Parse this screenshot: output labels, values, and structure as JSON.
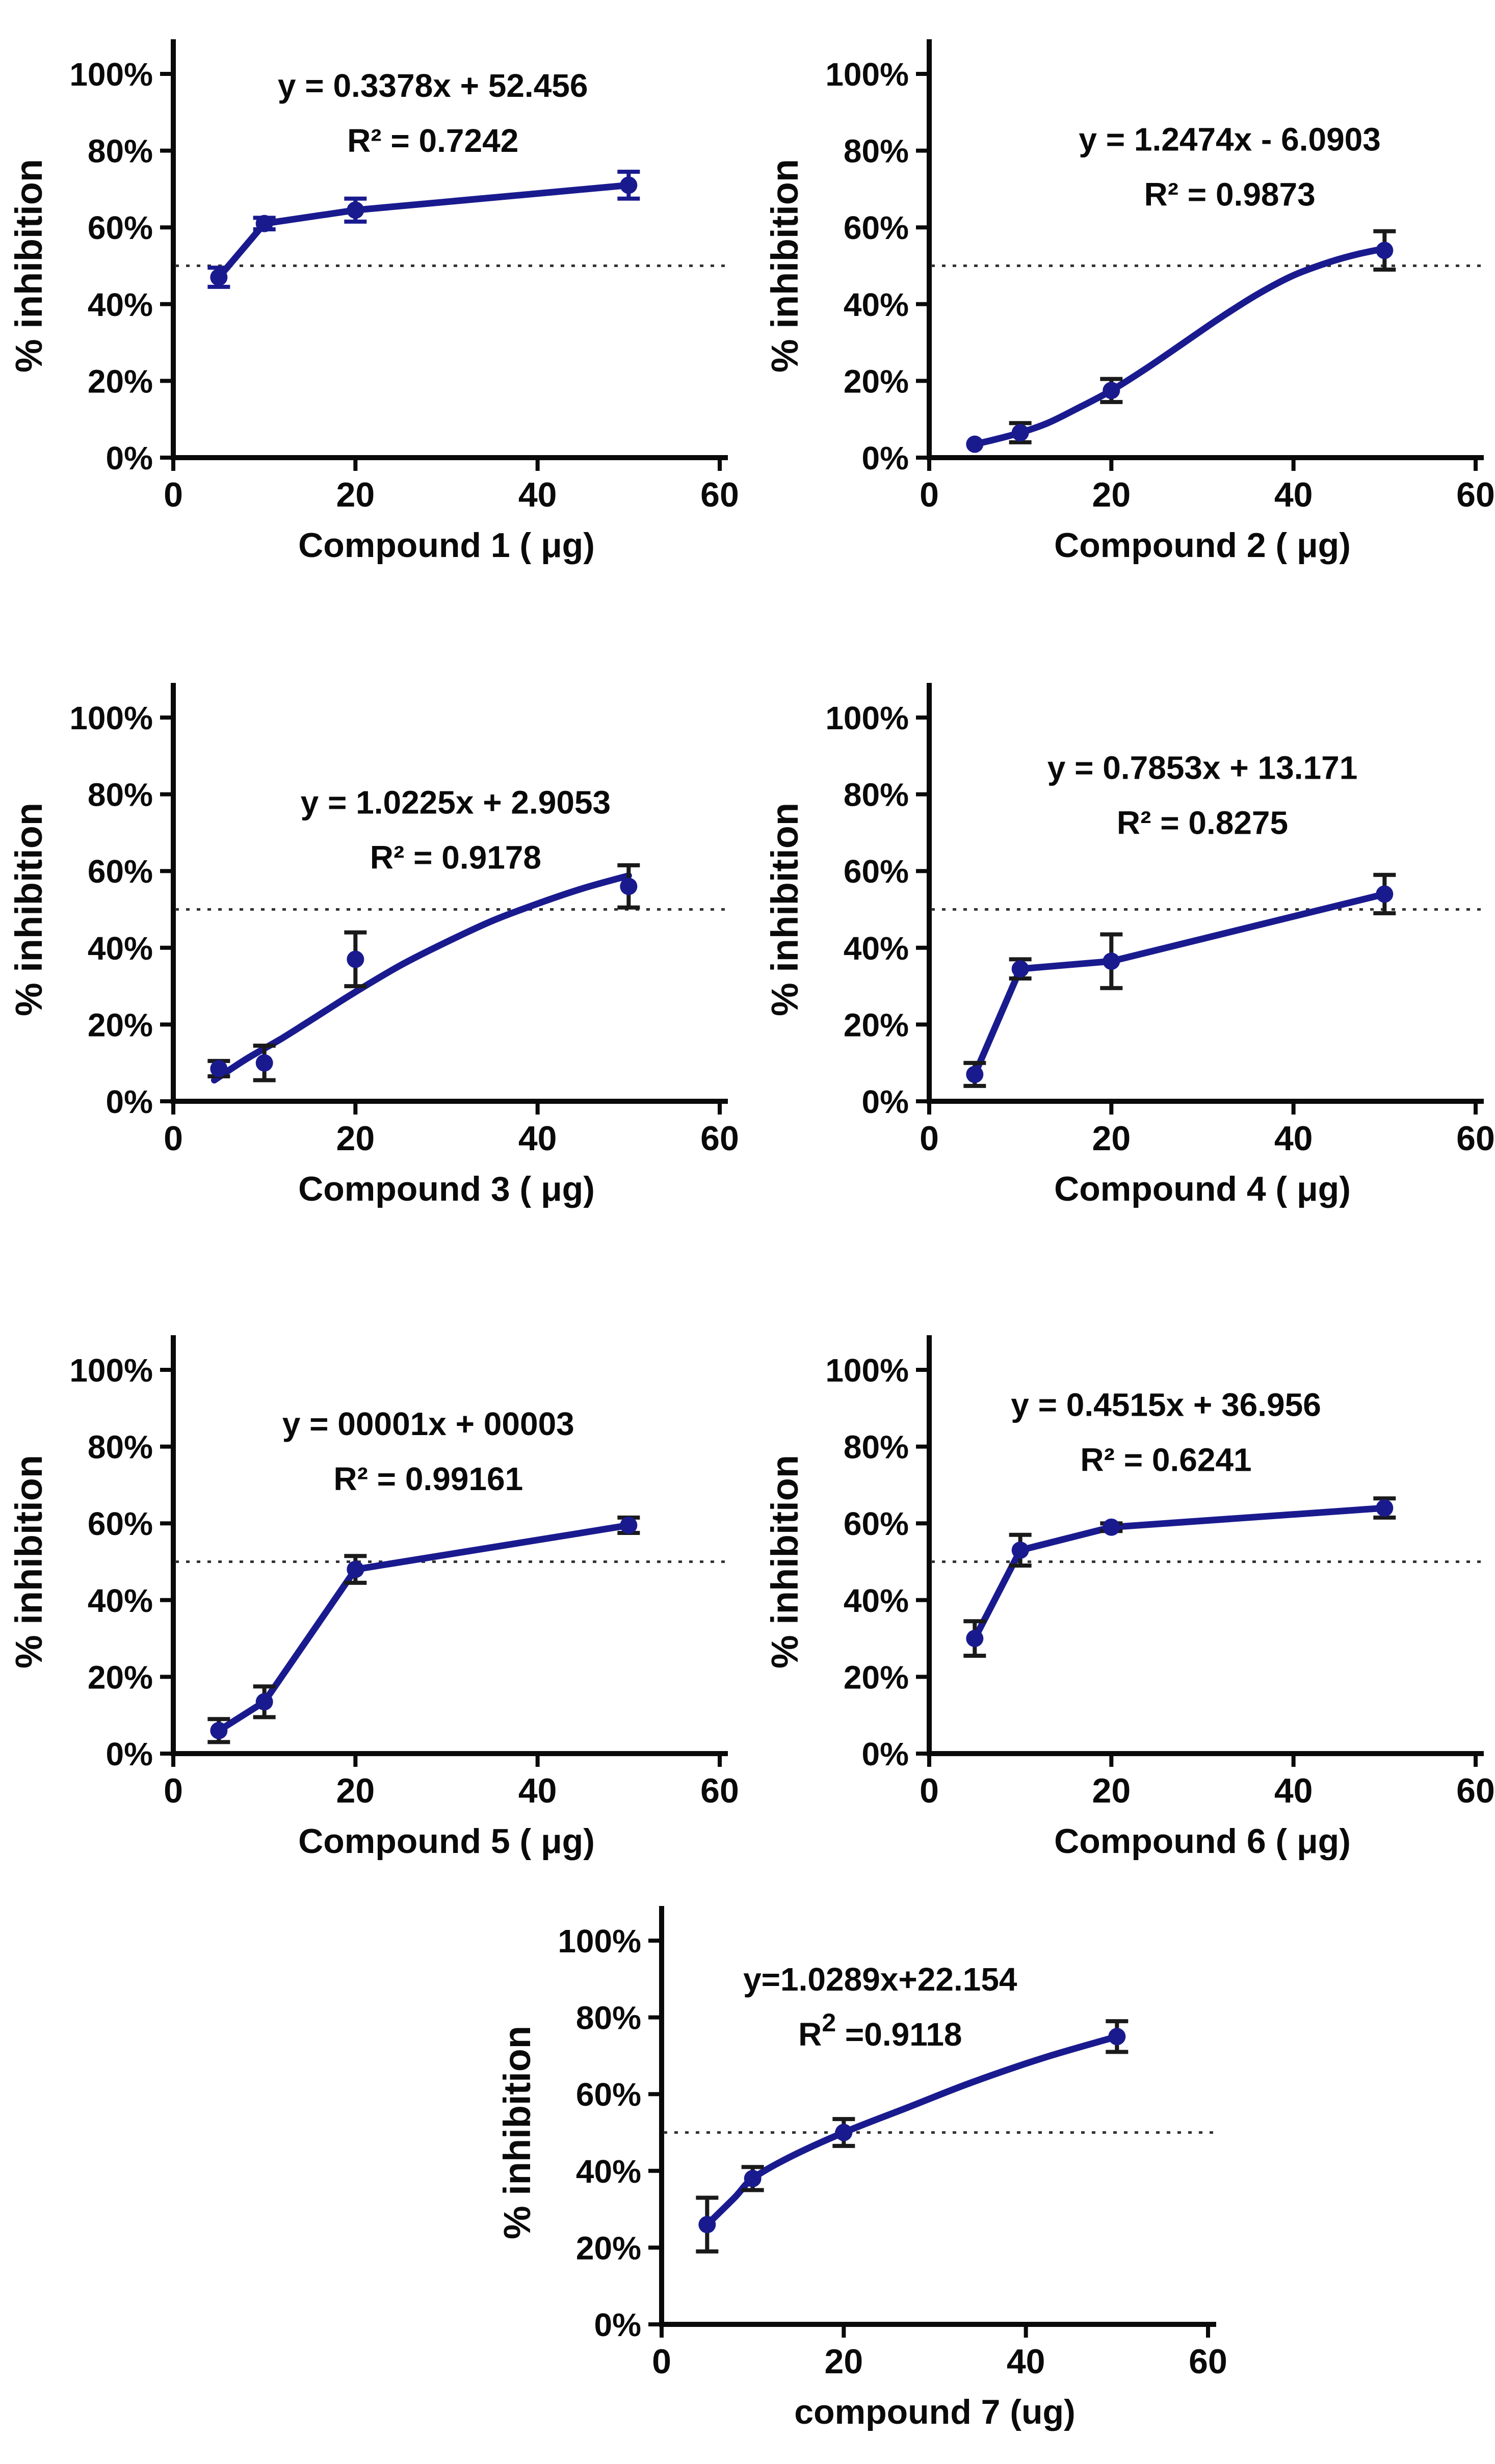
{
  "figure": {
    "background": "#ffffff",
    "line_color": "#1a1a8f",
    "marker_color": "#1a1a8f",
    "text_color": "#0a0a0a",
    "reference_line": {
      "value": 50,
      "style": "dotted",
      "color": "#333333"
    }
  },
  "chart_data": [
    {
      "name": "compound-1",
      "type": "line",
      "equation": "y = 0.3378x + 52.456",
      "r_squared": "R² = 0.7242",
      "big_superscript": false,
      "xlabel": "Compound 1 ( μg)",
      "ylabel": "% inhibition",
      "x": [
        5,
        10,
        20,
        50
      ],
      "y": [
        47,
        61,
        64.5,
        71
      ],
      "yerr": [
        2.5,
        1.5,
        3,
        3.5
      ],
      "xlim": [
        0,
        60
      ],
      "ylim": [
        0,
        100
      ],
      "xticks": [
        0,
        20,
        40,
        60
      ],
      "yticks": [
        0,
        20,
        40,
        60,
        80,
        100
      ],
      "ytick_labels": [
        "0%",
        "20%",
        "40%",
        "60%",
        "80%",
        "100%"
      ],
      "grid": false,
      "legend": "none",
      "reference_line_y": 50,
      "connect": "segments",
      "curve": null,
      "error_color": "#1a1a8f",
      "annotation_anchor": {
        "x": 28.5,
        "y": 94
      }
    },
    {
      "name": "compound-2",
      "type": "line",
      "equation": "y = 1.2474x - 6.0903",
      "r_squared": "R² = 0.9873",
      "big_superscript": false,
      "xlabel": "Compound 2 ( μg)",
      "ylabel": "% inhibition",
      "x": [
        5,
        10,
        20,
        50
      ],
      "y": [
        3.5,
        6.5,
        17.5,
        54
      ],
      "yerr": [
        0,
        2.5,
        3,
        5
      ],
      "xlim": [
        0,
        60
      ],
      "ylim": [
        0,
        100
      ],
      "xticks": [
        0,
        20,
        40,
        60
      ],
      "yticks": [
        0,
        20,
        40,
        60,
        80,
        100
      ],
      "ytick_labels": [
        "0%",
        "20%",
        "40%",
        "60%",
        "80%",
        "100%"
      ],
      "grid": false,
      "legend": "none",
      "reference_line_y": 50,
      "connect": "curve",
      "curve": [
        [
          5,
          3.5
        ],
        [
          7,
          4.6
        ],
        [
          10,
          6.5
        ],
        [
          13,
          9
        ],
        [
          16,
          12.5
        ],
        [
          20,
          17.5
        ],
        [
          24,
          23.5
        ],
        [
          28,
          30
        ],
        [
          32,
          36.5
        ],
        [
          36,
          42.5
        ],
        [
          40,
          47.5
        ],
        [
          44,
          51
        ],
        [
          47,
          53
        ],
        [
          50,
          54.5
        ]
      ],
      "error_color": "#1a1a1a",
      "annotation_anchor": {
        "x": 33,
        "y": 80
      }
    },
    {
      "name": "compound-3",
      "type": "line",
      "equation": "y = 1.0225x + 2.9053",
      "r_squared": "R² = 0.9178",
      "big_superscript": false,
      "xlabel": "Compound 3 ( μg)",
      "ylabel": "% inhibition",
      "x": [
        5,
        10,
        20,
        50
      ],
      "y": [
        8.5,
        10,
        37,
        56
      ],
      "yerr": [
        2,
        4.5,
        7,
        5.5
      ],
      "xlim": [
        0,
        60
      ],
      "ylim": [
        0,
        100
      ],
      "xticks": [
        0,
        20,
        40,
        60
      ],
      "yticks": [
        0,
        20,
        40,
        60,
        80,
        100
      ],
      "ytick_labels": [
        "0%",
        "20%",
        "40%",
        "60%",
        "80%",
        "100%"
      ],
      "grid": false,
      "legend": "none",
      "reference_line_y": 50,
      "connect": "curve",
      "curve": [
        [
          4.5,
          5.5
        ],
        [
          8,
          11
        ],
        [
          12,
          16.5
        ],
        [
          16,
          22.5
        ],
        [
          20,
          28.5
        ],
        [
          25,
          35.5
        ],
        [
          30,
          41.5
        ],
        [
          35,
          47
        ],
        [
          40,
          51.5
        ],
        [
          45,
          55.5
        ],
        [
          50,
          58.8
        ]
      ],
      "error_color": "#1a1a1a",
      "annotation_anchor": {
        "x": 31,
        "y": 75
      }
    },
    {
      "name": "compound-4",
      "type": "line",
      "equation": "y = 0.7853x + 13.171",
      "r_squared": "R² = 0.8275",
      "big_superscript": false,
      "xlabel": "Compound 4 ( μg)",
      "ylabel": "% inhibition",
      "x": [
        5,
        10,
        20,
        50
      ],
      "y": [
        7,
        34.5,
        36.5,
        54
      ],
      "yerr": [
        3,
        2.5,
        7,
        5
      ],
      "xlim": [
        0,
        60
      ],
      "ylim": [
        0,
        100
      ],
      "xticks": [
        0,
        20,
        40,
        60
      ],
      "yticks": [
        0,
        20,
        40,
        60,
        80,
        100
      ],
      "ytick_labels": [
        "0%",
        "20%",
        "40%",
        "60%",
        "80%",
        "100%"
      ],
      "grid": false,
      "legend": "none",
      "reference_line_y": 50,
      "connect": "segments",
      "curve": null,
      "error_color": "#1a1a1a",
      "annotation_anchor": {
        "x": 30,
        "y": 84
      }
    },
    {
      "name": "compound-5",
      "type": "line",
      "equation": "y = 00001x + 00003",
      "r_squared": "R² = 0.99161",
      "big_superscript": false,
      "xlabel": "Compound 5 ( μg)",
      "ylabel": "% inhibition",
      "x": [
        5,
        10,
        20,
        50
      ],
      "y": [
        6,
        13.5,
        48,
        59.5
      ],
      "yerr": [
        3,
        4,
        3.5,
        2
      ],
      "xlim": [
        0,
        60
      ],
      "ylim": [
        0,
        100
      ],
      "xticks": [
        0,
        20,
        40,
        60
      ],
      "yticks": [
        0,
        20,
        40,
        60,
        80,
        100
      ],
      "ytick_labels": [
        "0%",
        "20%",
        "40%",
        "60%",
        "80%",
        "100%"
      ],
      "grid": false,
      "legend": "none",
      "reference_line_y": 50,
      "connect": "segments",
      "curve": null,
      "error_color": "#1a1a1a",
      "annotation_anchor": {
        "x": 28,
        "y": 83
      }
    },
    {
      "name": "compound-6",
      "type": "line",
      "equation": "y = 0.4515x + 36.956",
      "r_squared": "R² = 0.6241",
      "big_superscript": false,
      "xlabel": "Compound 6 ( μg)",
      "ylabel": "% inhibition",
      "x": [
        5,
        10,
        20,
        50
      ],
      "y": [
        30,
        53,
        59,
        64
      ],
      "yerr": [
        4.5,
        4,
        1,
        2.5
      ],
      "xlim": [
        0,
        60
      ],
      "ylim": [
        0,
        100
      ],
      "xticks": [
        0,
        20,
        40,
        60
      ],
      "yticks": [
        0,
        20,
        40,
        60,
        80,
        100
      ],
      "ytick_labels": [
        "0%",
        "20%",
        "40%",
        "60%",
        "80%",
        "100%"
      ],
      "grid": false,
      "legend": "none",
      "reference_line_y": 50,
      "connect": "segments",
      "curve": null,
      "error_color": "#1a1a1a",
      "annotation_anchor": {
        "x": 26,
        "y": 88
      }
    },
    {
      "name": "compound-7",
      "type": "line",
      "equation": "y=1.0289x+22.154",
      "r_squared": "R² =0.9118",
      "big_superscript": true,
      "xlabel": "compound 7 (ug)",
      "ylabel": "% inhibition",
      "x": [
        5,
        10,
        20,
        50
      ],
      "y": [
        26,
        38,
        50,
        75
      ],
      "yerr": [
        7,
        3,
        3.5,
        4
      ],
      "xlim": [
        0,
        60
      ],
      "ylim": [
        0,
        100
      ],
      "xticks": [
        0,
        20,
        40,
        60
      ],
      "yticks": [
        0,
        20,
        40,
        60,
        80,
        100
      ],
      "ytick_labels": [
        "0%",
        "20%",
        "40%",
        "60%",
        "80%",
        "100%"
      ],
      "grid": false,
      "legend": "none",
      "reference_line_y": 50,
      "connect": "curve",
      "curve": [
        [
          5,
          26
        ],
        [
          8,
          33
        ],
        [
          10,
          38
        ],
        [
          14,
          43.5
        ],
        [
          20,
          50
        ],
        [
          27,
          56.5
        ],
        [
          34,
          63
        ],
        [
          42,
          69.5
        ],
        [
          50,
          75
        ]
      ],
      "error_color": "#1a1a1a",
      "annotation_anchor": {
        "x": 24,
        "y": 87
      }
    }
  ]
}
